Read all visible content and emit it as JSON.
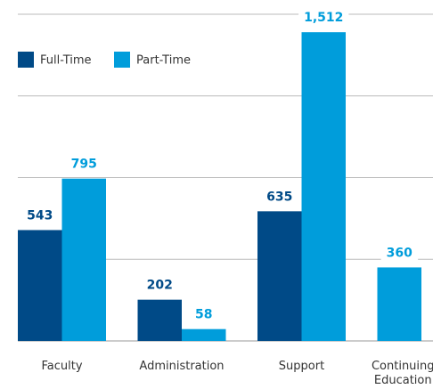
{
  "chart_data": {
    "type": "bar",
    "categories": [
      "Faculty",
      "Administration",
      "Support",
      "Continuing Education"
    ],
    "series": [
      {
        "name": "Full-Time",
        "color": "#004a87",
        "values": [
          543,
          202,
          635,
          null
        ],
        "value_labels": [
          "543",
          "202",
          "635",
          null
        ]
      },
      {
        "name": "Part-Time",
        "color": "#009ddb",
        "values": [
          795,
          58,
          1512,
          360
        ],
        "value_labels": [
          "795",
          "58",
          "1,512",
          "360"
        ]
      }
    ],
    "ylim": [
      0,
      1600
    ],
    "yticks": [
      0,
      400,
      800,
      1200,
      1600
    ],
    "grid": true,
    "legend": "top-left"
  }
}
